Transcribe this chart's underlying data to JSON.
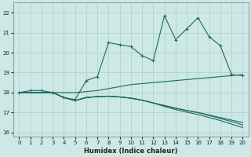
{
  "xlabel": "Humidex (Indice chaleur)",
  "xlim": [
    -0.5,
    20.5
  ],
  "ylim": [
    15.8,
    22.5
  ],
  "xticks": [
    0,
    1,
    2,
    3,
    4,
    5,
    6,
    7,
    8,
    9,
    10,
    11,
    12,
    13,
    14,
    15,
    16,
    17,
    18,
    19,
    20
  ],
  "yticks": [
    16,
    17,
    18,
    19,
    20,
    21,
    22
  ],
  "bg_color": "#cde8e5",
  "line_color": "#1a6b62",
  "grid_color": "#aacfcc",
  "figsize": [
    3.2,
    2.0
  ],
  "dpi": 100,
  "line1_x": [
    0,
    1,
    2,
    3,
    4,
    5,
    6,
    7,
    8,
    9,
    10,
    11,
    12,
    13,
    14,
    15,
    16,
    17,
    18,
    19,
    20
  ],
  "line1_y": [
    18.0,
    18.1,
    18.1,
    18.0,
    17.75,
    17.65,
    18.6,
    18.8,
    20.5,
    20.4,
    20.3,
    19.85,
    19.6,
    21.85,
    20.65,
    21.2,
    21.75,
    20.8,
    20.35,
    18.9,
    18.85
  ],
  "line2_x": [
    0,
    1,
    2,
    3,
    4,
    5,
    6,
    7,
    8,
    9,
    10,
    11,
    12,
    13,
    14,
    15,
    16,
    17,
    18,
    19,
    20
  ],
  "line2_y": [
    18.0,
    18.0,
    18.0,
    18.0,
    18.0,
    18.0,
    18.05,
    18.1,
    18.2,
    18.3,
    18.4,
    18.45,
    18.5,
    18.55,
    18.6,
    18.65,
    18.7,
    18.75,
    18.8,
    18.85,
    18.9
  ],
  "line3_x": [
    0,
    1,
    2,
    3,
    4,
    5,
    6,
    7,
    8,
    9,
    10,
    11,
    12,
    13,
    14,
    15,
    16,
    17,
    18,
    19,
    20
  ],
  "line3_y": [
    18.0,
    18.0,
    18.0,
    18.0,
    17.75,
    17.6,
    17.75,
    17.8,
    17.82,
    17.78,
    17.72,
    17.62,
    17.48,
    17.35,
    17.22,
    17.1,
    17.0,
    16.88,
    16.75,
    16.62,
    16.5
  ],
  "line4_x": [
    0,
    1,
    2,
    3,
    4,
    5,
    6,
    7,
    8,
    9,
    10,
    11,
    12,
    13,
    14,
    15,
    16,
    17,
    18,
    19,
    20
  ],
  "line4_y": [
    18.0,
    18.0,
    18.0,
    18.0,
    17.75,
    17.6,
    17.75,
    17.8,
    17.82,
    17.78,
    17.72,
    17.62,
    17.48,
    17.35,
    17.22,
    17.1,
    17.0,
    16.85,
    16.7,
    16.55,
    16.38
  ],
  "line5_x": [
    0,
    1,
    2,
    3,
    4,
    5,
    6,
    7,
    8,
    9,
    10,
    11,
    12,
    13,
    14,
    15,
    16,
    17,
    18,
    19,
    20
  ],
  "line5_y": [
    18.0,
    18.0,
    18.0,
    18.0,
    17.75,
    17.6,
    17.75,
    17.8,
    17.82,
    17.78,
    17.72,
    17.62,
    17.48,
    17.3,
    17.15,
    17.02,
    16.9,
    16.75,
    16.6,
    16.42,
    16.25
  ]
}
